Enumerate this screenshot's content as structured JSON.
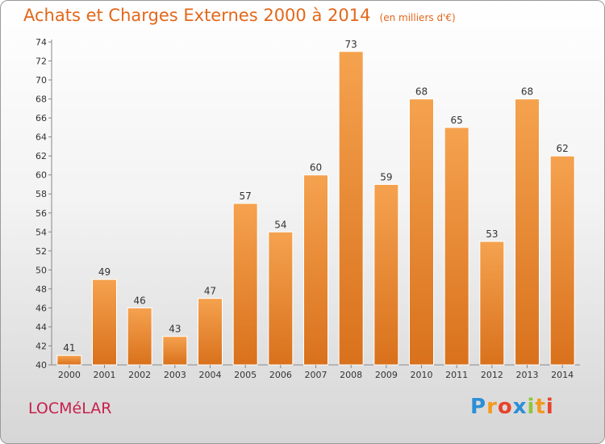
{
  "title": "Achats et Charges Externes 2000 à 2014",
  "subtitle": "(en milliers d'€)",
  "town": "LOCMéLAR",
  "logo": {
    "letters": [
      "P",
      "r",
      "o",
      "x",
      "i",
      "t",
      "i"
    ],
    "colors": [
      "#2b8fd6",
      "#f39a1e",
      "#e8432b",
      "#2b8fd6",
      "#8cc63f",
      "#f39a1e",
      "#e8432b"
    ]
  },
  "colors": {
    "bar": "#f39a43",
    "title": "#e3671a",
    "town": "#c7204c"
  },
  "chart_data": {
    "type": "bar",
    "categories": [
      "2000",
      "2001",
      "2002",
      "2003",
      "2004",
      "2005",
      "2006",
      "2007",
      "2008",
      "2009",
      "2010",
      "2011",
      "2012",
      "2013",
      "2014"
    ],
    "values": [
      41,
      49,
      46,
      43,
      47,
      57,
      54,
      60,
      73,
      59,
      68,
      65,
      53,
      68,
      62
    ],
    "ylim": [
      40,
      74
    ],
    "yticks": [
      40,
      42,
      44,
      46,
      48,
      50,
      52,
      54,
      56,
      58,
      60,
      62,
      64,
      66,
      68,
      70,
      72,
      74
    ],
    "grid": false,
    "data_labels": true
  }
}
